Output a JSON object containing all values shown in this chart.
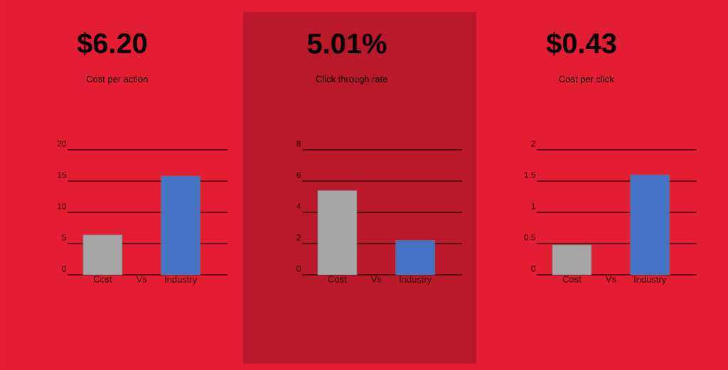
{
  "chart_data": [
    {
      "type": "bar",
      "title": "$6.20",
      "subtitle": "Cost per action",
      "categories": [
        "Cost",
        "Vs",
        "Industry"
      ],
      "values": [
        6.4,
        null,
        15.8
      ],
      "colors": [
        "#a6a6a6",
        "#a6a6a6",
        "#4472c4"
      ],
      "ylim": [
        0,
        20
      ],
      "yticks": [
        0,
        5,
        10,
        15,
        20
      ],
      "grid": "y"
    },
    {
      "type": "bar",
      "title": "5.01%",
      "subtitle": "Click through rate",
      "categories": [
        "Cost",
        "Vs",
        "Industry"
      ],
      "values": [
        5.4,
        null,
        2.2
      ],
      "colors": [
        "#a6a6a6",
        "#a6a6a6",
        "#4472c4"
      ],
      "ylim": [
        0,
        8
      ],
      "yticks": [
        0,
        2,
        4,
        6,
        8
      ],
      "grid": "y"
    },
    {
      "type": "bar",
      "title": "$0.43",
      "subtitle": "Cost per click",
      "categories": [
        "Cost",
        "Vs",
        "Industry"
      ],
      "values": [
        0.48,
        null,
        1.6
      ],
      "colors": [
        "#a6a6a6",
        "#a6a6a6",
        "#4472c4"
      ],
      "ylim": [
        0,
        2
      ],
      "yticks": [
        0,
        0.5,
        1,
        1.5,
        2
      ],
      "grid": "y"
    }
  ]
}
